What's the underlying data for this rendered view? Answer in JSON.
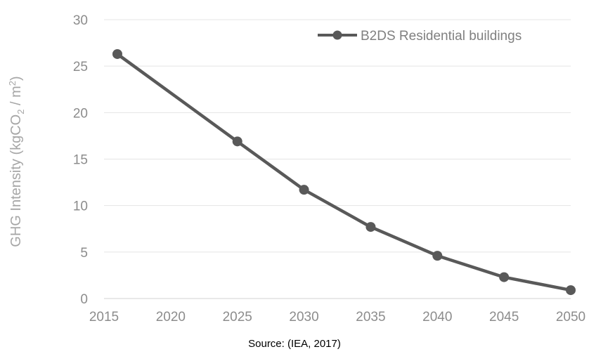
{
  "chart_data": {
    "type": "line",
    "title": "",
    "xlabel": "",
    "ylabel_parts": [
      "GHG Intensity (kgCO",
      "2",
      " / m",
      "2",
      ")"
    ],
    "x_ticks": [
      "2015",
      "2020",
      "2025",
      "2030",
      "2035",
      "2040",
      "2045",
      "2050"
    ],
    "y_ticks": [
      "0",
      "5",
      "10",
      "15",
      "20",
      "25",
      "30"
    ],
    "xlim": [
      2015,
      2050
    ],
    "ylim": [
      0,
      30
    ],
    "grid": "horizontal",
    "legend_position": "top-right",
    "series": [
      {
        "name": "B2DS Residential buildings",
        "color": "#595959",
        "x": [
          2016,
          2025,
          2030,
          2035,
          2040,
          2045,
          2050
        ],
        "y": [
          26.3,
          16.9,
          11.7,
          7.7,
          4.6,
          2.3,
          0.9
        ]
      }
    ]
  },
  "source": "Source: (IEA, 2017)"
}
